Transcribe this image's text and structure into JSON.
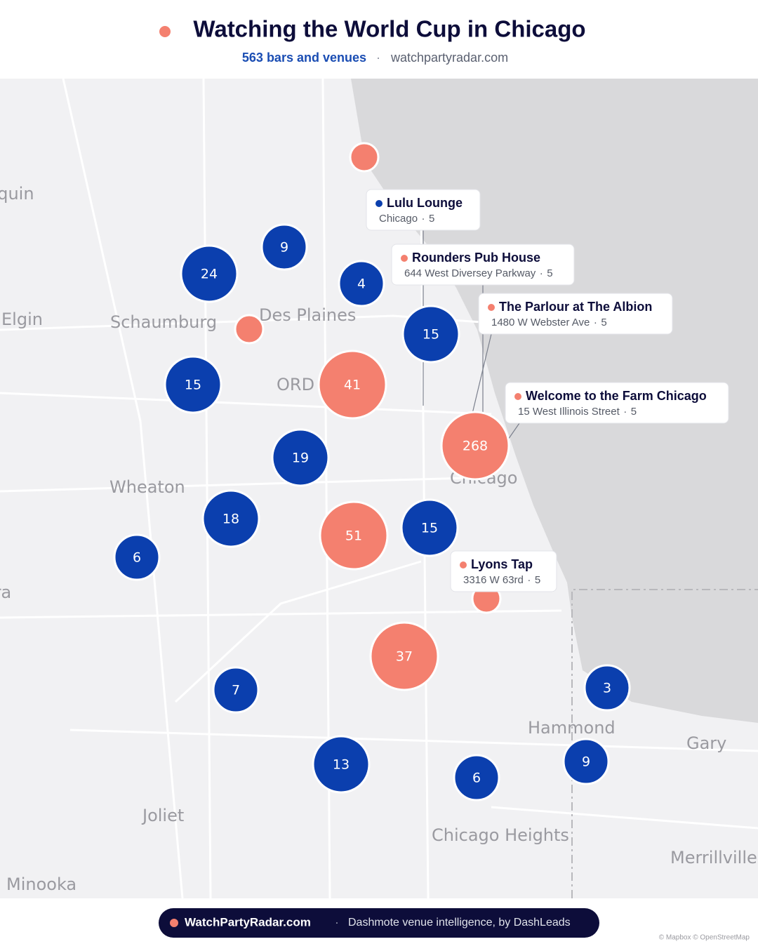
{
  "header": {
    "title": "Watching the World Cup in Chicago",
    "count": "563 bars and venues",
    "site": "watchpartyradar.com"
  },
  "map": {
    "places": [
      "Algonquin",
      "Elgin",
      "Schaumburg",
      "Des Plaines",
      "ORD",
      "Wheaton",
      "Aurora",
      "Chicago",
      "Hammond",
      "Gary",
      "Joliet",
      "Chicago Heights",
      "Merrillville",
      "Minooka"
    ],
    "clusters": [
      9,
      24,
      4,
      15,
      15,
      41,
      19,
      268,
      18,
      51,
      15,
      6,
      37,
      7,
      3,
      13,
      6,
      9
    ],
    "callouts": [
      {
        "name": "Lulu Lounge",
        "detail": "Chicago",
        "count": 5
      },
      {
        "name": "Rounders Pub House",
        "detail": "644 West Diversey Parkway",
        "count": 5
      },
      {
        "name": "The Parlour at The Albion",
        "detail": "1480 W Webster Ave",
        "count": 5
      },
      {
        "name": "Welcome to the Farm Chicago",
        "detail": "15 West Illinois Street",
        "count": 5
      },
      {
        "name": "Lyons Tap",
        "detail": "3316 W 63rd",
        "count": 5
      }
    ]
  },
  "footer": {
    "brand": "WatchPartyRadar.com",
    "tagline": "Dashmote venue intelligence, by DashLeads"
  },
  "attribution": "© Mapbox © OpenStreetMap"
}
